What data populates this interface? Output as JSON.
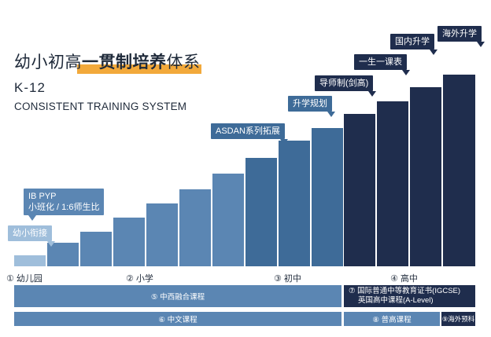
{
  "title_prefix": "幼小初高",
  "title_bold": "一贯制培养",
  "title_suffix": "体系",
  "k12": "K-12",
  "subtitle": "CONSISTENT TRAINING SYSTEM",
  "callouts": {
    "kindergarten_bridge": "幼小衔接",
    "ib_pyp_line1": "IB PYP",
    "ib_pyp_line2": "小班化 / 1:6师生比",
    "asdan": "ASDAN系列拓展",
    "planning": "升学规划",
    "tutor": "导师制(剑高)",
    "one_course": "一生一课表",
    "domestic": "国内升学",
    "overseas": "海外升学"
  },
  "stages": {
    "kindergarten": "① 幼儿园",
    "primary": "② 小学",
    "junior": "③ 初中",
    "senior": "④ 高中"
  },
  "curricula": {
    "fusion": "⑤ 中西融合课程",
    "igcse_line1": "⑦ 国际普通中等教育证书(IGCSE)",
    "igcse_line2": "英国高中课程(A-Level)",
    "chinese": "⑥ 中文课程",
    "general_high": "⑧ 普高课程",
    "overseas_prep": "⑨海外预科"
  },
  "colors": {
    "light": "#9fbedb",
    "mid": "#5b86b3",
    "steel": "#3e6b98",
    "dark": "#1f2d4d",
    "accent": "#f2a93b"
  }
}
